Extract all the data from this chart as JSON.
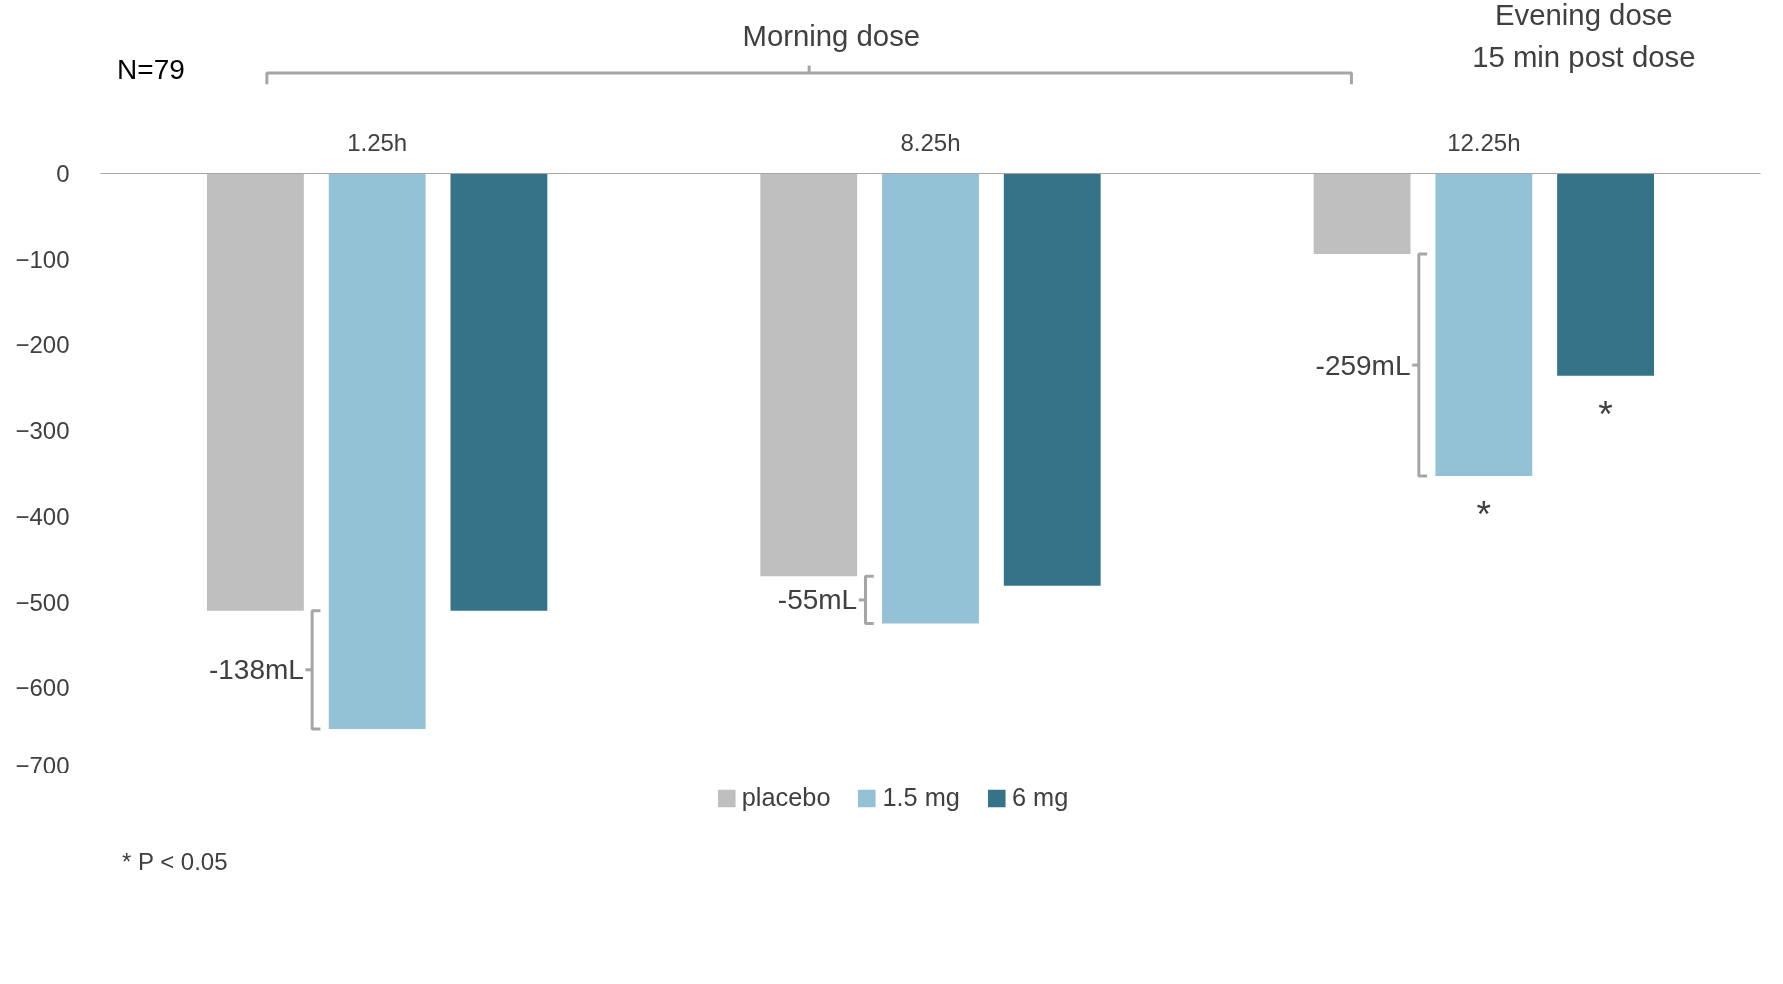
{
  "chart_data": {
    "type": "bar",
    "categories": [
      "1.25h",
      "8.25h",
      "12.25h"
    ],
    "series": [
      {
        "name": "placebo",
        "color": "#bfbfbf",
        "values": [
          -510,
          -470,
          -94
        ]
      },
      {
        "name": "1.5 mg",
        "color": "#93c2d6",
        "values": [
          -648,
          -525,
          -353
        ]
      },
      {
        "name": "6 mg",
        "color": "#357389",
        "values": [
          -510,
          -481,
          -236
        ]
      }
    ],
    "ylim": [
      -700,
      0
    ],
    "yticks": [
      0,
      -100,
      -200,
      -300,
      -400,
      -500,
      -600,
      -700
    ],
    "grid": false,
    "legend": "bottom",
    "annotations": [
      "N=79",
      "Morning dose",
      "Evening dose\n15 min post dose",
      "* P < 0.05",
      "-138mL",
      "-55mL",
      "-259mL",
      "*",
      "*"
    ]
  }
}
